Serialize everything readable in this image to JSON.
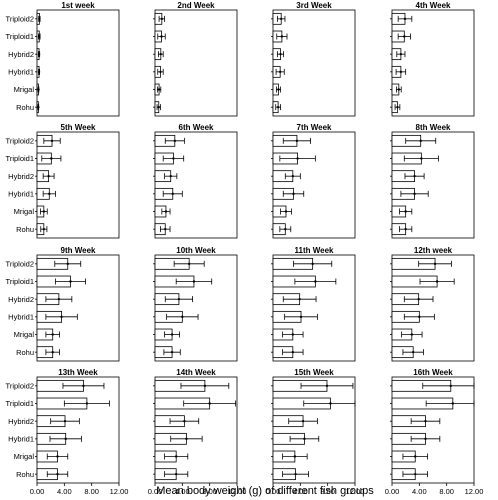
{
  "chart_data": {
    "type": "bar",
    "orientation": "horizontal",
    "xlabel": "Mean body weight (g) of different fish groups",
    "categories": [
      "Triploid2",
      "Triploid1",
      "Hybrid2",
      "Hybrid1",
      "Mrigal",
      "Rohu"
    ],
    "xlim": [
      0,
      12
    ],
    "xticks": [
      "0.00",
      "4.00",
      "8.00",
      "12.00"
    ],
    "panels": [
      {
        "title": "1st week",
        "values": [
          0.35,
          0.33,
          0.3,
          0.3,
          0.22,
          0.2
        ],
        "errors": [
          0.1,
          0.12,
          0.09,
          0.08,
          0.05,
          0.05
        ]
      },
      {
        "title": "2nd Week",
        "values": [
          1.0,
          0.95,
          0.85,
          0.8,
          0.6,
          0.55
        ],
        "errors": [
          0.4,
          0.55,
          0.35,
          0.4,
          0.25,
          0.25
        ]
      },
      {
        "title": "3rd Week",
        "values": [
          1.2,
          1.3,
          1.1,
          1.05,
          0.8,
          0.75
        ],
        "errors": [
          0.55,
          0.75,
          0.45,
          0.6,
          0.3,
          0.35
        ]
      },
      {
        "title": "4th Week",
        "values": [
          1.9,
          1.8,
          1.3,
          1.3,
          1.0,
          0.8
        ],
        "errors": [
          1.0,
          0.9,
          0.6,
          0.7,
          0.35,
          0.35
        ]
      },
      {
        "title": "5th Week",
        "values": [
          2.2,
          2.1,
          1.7,
          1.8,
          1.0,
          1.0
        ],
        "errors": [
          1.2,
          1.4,
          0.8,
          0.9,
          0.5,
          0.45
        ]
      },
      {
        "title": "6th Week",
        "values": [
          2.9,
          2.7,
          2.3,
          2.6,
          1.6,
          1.5
        ],
        "errors": [
          1.4,
          1.5,
          0.9,
          1.4,
          0.6,
          0.7
        ]
      },
      {
        "title": "7th Week",
        "values": [
          3.5,
          3.6,
          2.9,
          3.0,
          1.9,
          1.8
        ],
        "errors": [
          2.0,
          2.6,
          1.1,
          1.5,
          0.8,
          0.8
        ]
      },
      {
        "title": "8th Week",
        "values": [
          4.2,
          4.3,
          3.3,
          3.3,
          2.0,
          2.0
        ],
        "errors": [
          2.2,
          2.5,
          1.4,
          2.0,
          0.9,
          0.9
        ]
      },
      {
        "title": "9th Week",
        "values": [
          4.5,
          4.9,
          3.2,
          3.6,
          2.3,
          2.3
        ],
        "errors": [
          1.9,
          2.2,
          1.9,
          2.3,
          1.0,
          1.0
        ]
      },
      {
        "title": "10th Week",
        "values": [
          5.0,
          5.7,
          3.5,
          4.0,
          2.5,
          2.5
        ],
        "errors": [
          2.2,
          2.6,
          2.0,
          2.3,
          1.1,
          1.2
        ]
      },
      {
        "title": "11th Week",
        "values": [
          5.8,
          6.2,
          3.9,
          4.1,
          2.9,
          2.9
        ],
        "errors": [
          2.8,
          3.0,
          2.4,
          2.4,
          1.5,
          1.5
        ]
      },
      {
        "title": "12th week",
        "values": [
          6.3,
          6.6,
          3.9,
          4.0,
          2.9,
          3.1
        ],
        "errors": [
          2.4,
          2.5,
          2.1,
          2.2,
          1.5,
          1.5
        ]
      },
      {
        "title": "13th Week",
        "values": [
          6.8,
          7.3,
          4.1,
          4.2,
          3.0,
          3.0
        ],
        "errors": [
          3.0,
          3.3,
          2.1,
          2.3,
          1.5,
          1.5
        ]
      },
      {
        "title": "14th Week",
        "values": [
          7.3,
          8.0,
          4.3,
          4.6,
          3.1,
          3.1
        ],
        "errors": [
          3.5,
          3.8,
          2.1,
          2.3,
          1.7,
          1.7
        ]
      },
      {
        "title": "15th Week",
        "values": [
          7.9,
          8.4,
          4.4,
          4.6,
          3.2,
          3.3
        ],
        "errors": [
          3.8,
          3.9,
          2.1,
          2.1,
          1.8,
          1.9
        ]
      },
      {
        "title": "16th Week",
        "values": [
          8.6,
          8.9,
          4.9,
          4.9,
          3.4,
          3.4
        ],
        "errors": [
          4.1,
          3.9,
          2.1,
          2.1,
          1.8,
          1.8
        ]
      }
    ]
  }
}
